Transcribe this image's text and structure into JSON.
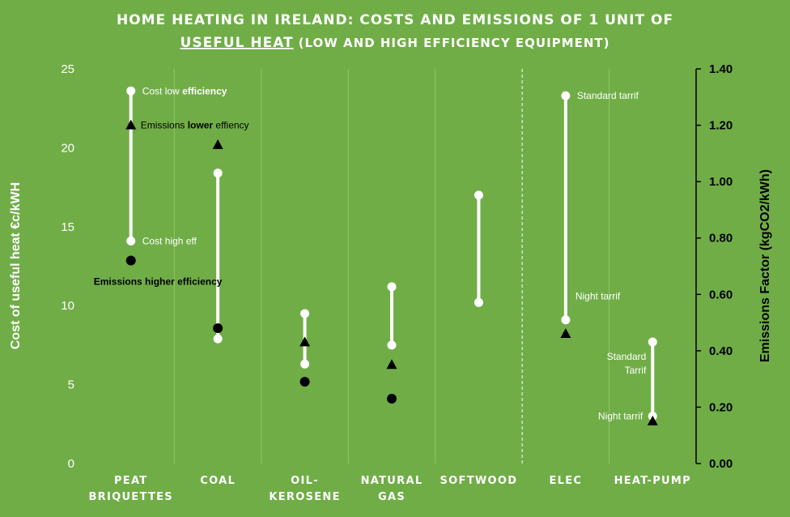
{
  "chart_data": {
    "type": "scatter",
    "title_line1": "HOME HEATING IN IRELAND: COSTS AND EMISSIONS OF 1 UNIT OF",
    "title_line2_underlined": "USEFUL HEAT",
    "title_line2_rest": "(LOW AND HIGH EFFICIENCY EQUIPMENT)",
    "ylabel": "Cost of useful heat €c/kWH",
    "y2label": "Emissions Factor (kgCO2/kWh)",
    "ylim": [
      0,
      25
    ],
    "y2lim": [
      0,
      1.4
    ],
    "yticks": [
      "0",
      "5",
      "10",
      "15",
      "20",
      "25"
    ],
    "y2ticks": [
      "0.00",
      "0.20",
      "0.40",
      "0.60",
      "0.80",
      "1.00",
      "1.20",
      "1.40"
    ],
    "grid": true,
    "categories": [
      {
        "label_lines": [
          "PEAT",
          "BRIQUETTES"
        ]
      },
      {
        "label_lines": [
          "COAL"
        ]
      },
      {
        "label_lines": [
          "OIL-",
          "KEROSENE"
        ]
      },
      {
        "label_lines": [
          "NATURAL",
          "GAS"
        ]
      },
      {
        "label_lines": [
          "SOFTWOOD"
        ]
      },
      {
        "label_lines": [
          "ELEC"
        ]
      },
      {
        "label_lines": [
          "HEAT-PUMP"
        ]
      }
    ],
    "series": [
      {
        "name": "Cost low efficiency",
        "axis": "left",
        "marker": "circle-white",
        "values": [
          23.6,
          18.4,
          9.5,
          11.2,
          17.0,
          23.3,
          7.7
        ]
      },
      {
        "name": "Cost high efficiency",
        "axis": "left",
        "marker": "circle-white",
        "values": [
          14.1,
          7.9,
          6.3,
          7.5,
          10.2,
          9.1,
          3.0
        ]
      },
      {
        "name": "Emissions lower efficiency",
        "axis": "right",
        "marker": "triangle-black",
        "values": [
          1.2,
          1.13,
          0.43,
          0.35,
          null,
          0.46,
          0.15
        ]
      },
      {
        "name": "Emissions higher efficiency",
        "axis": "right",
        "marker": "circle-black",
        "values": [
          0.72,
          0.48,
          0.29,
          0.23,
          null,
          null,
          null
        ]
      }
    ],
    "annotations": [
      {
        "category": 0,
        "series": 0,
        "text_plain": "Cost  low ",
        "text_bold": "efficiency",
        "color": "#ffffff"
      },
      {
        "category": 0,
        "series": 2,
        "text_plain": "Emissions ",
        "text_bold": "lower",
        "text_after": " effiency",
        "color": "#000000"
      },
      {
        "category": 0,
        "series": 1,
        "text_plain": "Cost high eff",
        "color": "#ffffff"
      },
      {
        "category": 0,
        "series": 3,
        "text_bold": "Emissions higher efficiency",
        "color": "#000000"
      },
      {
        "category": 5,
        "series": 0,
        "text_plain": "Standard tarrif",
        "color": "#ffffff"
      },
      {
        "category": 5,
        "series": 1,
        "text_plain": "Night tarrif",
        "color": "#ffffff"
      },
      {
        "category": 6,
        "series": 0,
        "text_lines": [
          "Standard",
          "Tarrif"
        ],
        "color": "#ffffff"
      },
      {
        "category": 6,
        "series": 1,
        "text_plain": "Night tarrif",
        "color": "#ffffff"
      }
    ],
    "separator_after_category": 4,
    "colors": {
      "background": "#70ad47",
      "grid": "#8fc46a",
      "range_line": "#ffffff",
      "marker_dark": "#000000"
    }
  }
}
